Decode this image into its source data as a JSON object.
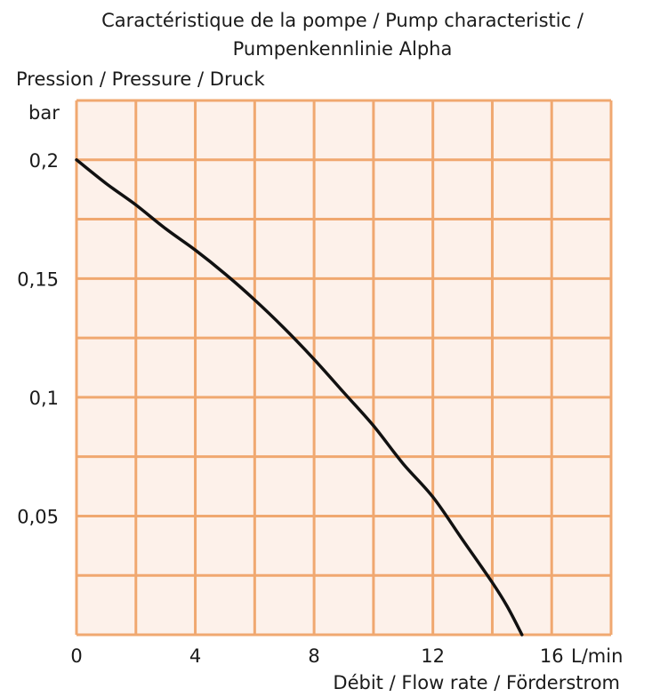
{
  "chart_data": {
    "type": "line",
    "title_lines": [
      "Caractéristique de la pompe / Pump characteristic /",
      "Pumpenkennlinie Alpha"
    ],
    "ylabel": "Pression / Pressure / Druck",
    "yunit": "bar",
    "xlabel": "Débit / Flow rate / Förderstrom",
    "xunit": "L/min",
    "xlim": [
      0,
      18
    ],
    "ylim": [
      0,
      0.225
    ],
    "x_grid_step": 2,
    "y_grid_step": 0.025,
    "grid": true,
    "x_ticks": [
      {
        "value": 0,
        "label": "0"
      },
      {
        "value": 4,
        "label": "4"
      },
      {
        "value": 8,
        "label": "8"
      },
      {
        "value": 12,
        "label": "12"
      },
      {
        "value": 16,
        "label": "16"
      }
    ],
    "y_ticks": [
      {
        "value": 0.2,
        "label": "0,2"
      },
      {
        "value": 0.15,
        "label": "0,15"
      },
      {
        "value": 0.1,
        "label": "0,1"
      },
      {
        "value": 0.05,
        "label": "0,05"
      }
    ],
    "series": [
      {
        "x": [
          0,
          1,
          2,
          3,
          4,
          5,
          6,
          7,
          8,
          9,
          10,
          11,
          12,
          13,
          14,
          14.5,
          15
        ],
        "y": [
          0.2,
          0.19,
          0.181,
          0.171,
          0.162,
          0.152,
          0.141,
          0.129,
          0.116,
          0.102,
          0.088,
          0.072,
          0.058,
          0.04,
          0.022,
          0.012,
          0.0
        ]
      }
    ],
    "colors": {
      "plot_background": "#fdf1ea",
      "grid": "#f0a870",
      "curve": "#111111"
    }
  }
}
